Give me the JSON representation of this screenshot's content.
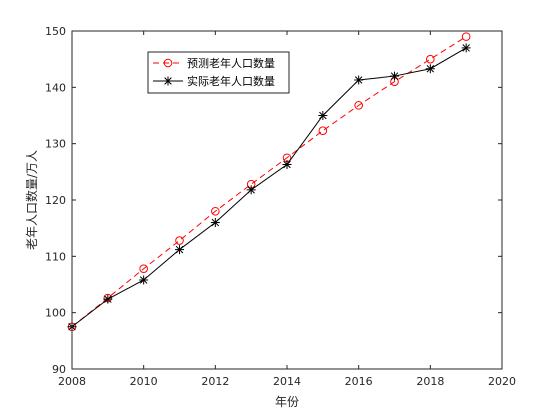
{
  "chart_data": {
    "type": "line",
    "title": "",
    "xlabel": "年份",
    "ylabel": "老年人口数量/万人",
    "xlim": [
      2008,
      2020
    ],
    "ylim": [
      90,
      150
    ],
    "xticks": [
      "2008",
      "2010",
      "2012",
      "2014",
      "2016",
      "2018",
      "2020"
    ],
    "yticks": [
      "90",
      "100",
      "110",
      "120",
      "130",
      "140",
      "150"
    ],
    "grid": false,
    "legend_position": "top-left",
    "x": [
      2008,
      2009,
      2010,
      2011,
      2012,
      2013,
      2014,
      2015,
      2016,
      2017,
      2018,
      2019
    ],
    "series": [
      {
        "name": "预测老年人口数量",
        "color": "#ff0000",
        "line_style": "dashed",
        "marker": "circle",
        "values": [
          97.5,
          102.6,
          107.8,
          112.8,
          118.0,
          122.8,
          127.5,
          132.3,
          136.8,
          141.0,
          145.0,
          149.0
        ]
      },
      {
        "name": "实际老年人口数量",
        "color": "#000000",
        "line_style": "solid",
        "marker": "asterisk",
        "values": [
          97.5,
          102.4,
          105.8,
          111.2,
          116.0,
          121.8,
          126.3,
          135.0,
          141.3,
          142.0,
          143.3,
          147.0
        ]
      }
    ]
  }
}
